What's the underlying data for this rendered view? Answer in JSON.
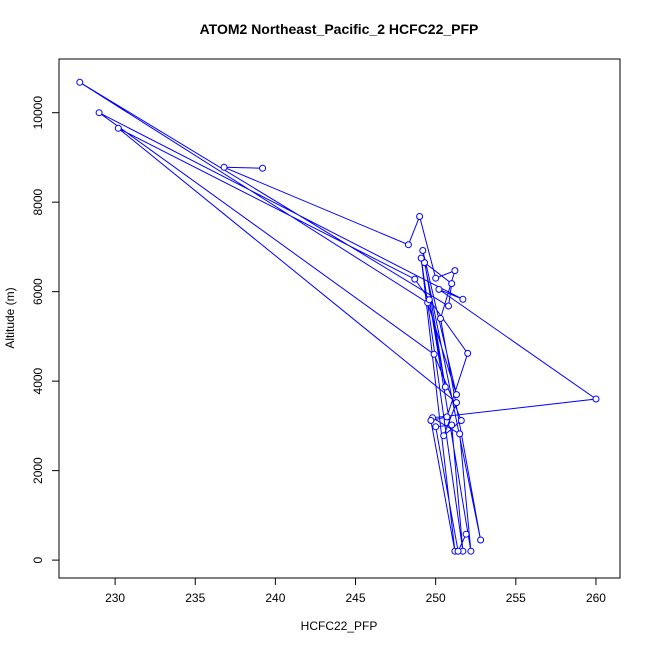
{
  "chart_data": {
    "type": "line",
    "title": "ATOM2 Northeast_Pacific_2 HCFC22_PFP",
    "xlabel": "HCFC22_PFP",
    "ylabel": "Altitude (m)",
    "xlim": [
      226.5,
      261.5
    ],
    "ylim": [
      -400,
      11200
    ],
    "xticks": [
      230,
      235,
      240,
      245,
      250,
      255,
      260
    ],
    "yticks": [
      0,
      2000,
      4000,
      6000,
      8000,
      10000
    ],
    "color": "#0000ff",
    "marker": "open-circle",
    "grid": false,
    "series": [
      {
        "x": [
          239.2,
          236.8,
          248.3,
          249.0,
          250.0,
          251.2,
          250.3,
          252.8,
          249.3,
          251.0,
          250.8,
          227.8,
          249.5,
          251.3,
          249.2,
          250.6,
          249.6,
          252.2,
          251.5,
          249.8,
          260.0,
          250.2,
          251.7,
          229.0,
          249.9,
          251.6,
          250.5,
          251.3,
          230.2,
          248.7,
          252.0,
          250.7,
          249.7,
          251.2,
          249.1,
          251.7,
          251.0,
          250.0,
          251.4,
          251.9
        ],
        "y": [
          8760,
          8780,
          7050,
          7680,
          6300,
          6470,
          5400,
          450,
          6650,
          6180,
          5680,
          10680,
          5750,
          3700,
          6920,
          3870,
          5820,
          200,
          2820,
          3180,
          3600,
          6050,
          5830,
          10000,
          4600,
          3120,
          2780,
          3520,
          9650,
          6280,
          4620,
          3200,
          3120,
          200,
          6750,
          200,
          3020,
          2980,
          200,
          580
        ]
      }
    ]
  }
}
